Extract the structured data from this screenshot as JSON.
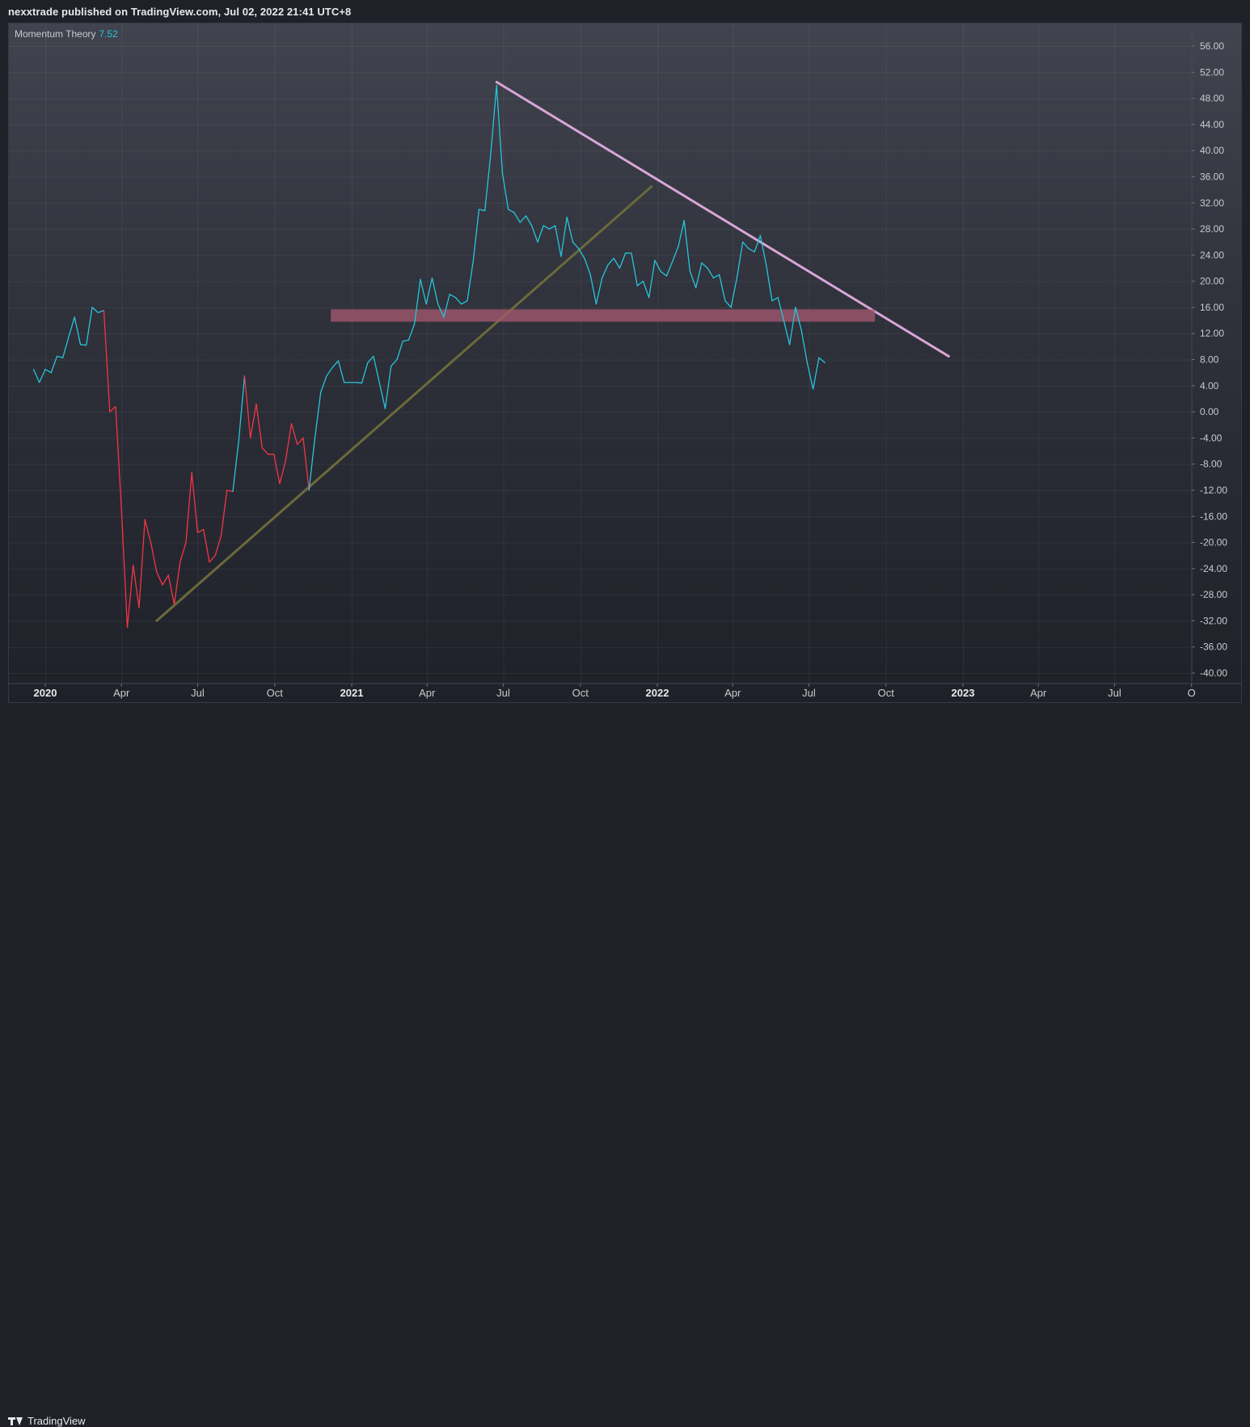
{
  "header": {
    "publish_line": "nexxtrade published on TradingView.com, Jul 02, 2022 21:41 UTC+8"
  },
  "indicator": {
    "name": "Momentum Theory",
    "value": "7.52",
    "value_color": "#26c6da"
  },
  "footer": {
    "brand": "TradingView"
  },
  "colors": {
    "positive_line": "#26c6da",
    "negative_line": "#f23645",
    "trend_support": "#6b6a3a",
    "trend_resistance": "#d7a6d6",
    "zone_fill": "#a85a70"
  },
  "chart_data": {
    "type": "line",
    "y_ticks": [
      "56.00",
      "52.00",
      "48.00",
      "44.00",
      "40.00",
      "36.00",
      "32.00",
      "28.00",
      "24.00",
      "20.00",
      "16.00",
      "12.00",
      "8.00",
      "4.00",
      "0.00",
      "-4.00",
      "-8.00",
      "-12.00",
      "-16.00",
      "-20.00",
      "-24.00",
      "-28.00",
      "-32.00",
      "-36.00",
      "-40.00"
    ],
    "ylim": [
      -40,
      56
    ],
    "x_ticks": [
      {
        "label": "2020",
        "date": "2020-01-01",
        "bold": true
      },
      {
        "label": "Apr",
        "date": "2020-04-01"
      },
      {
        "label": "Jul",
        "date": "2020-07-01"
      },
      {
        "label": "Oct",
        "date": "2020-10-01"
      },
      {
        "label": "2021",
        "date": "2021-01-01",
        "bold": true
      },
      {
        "label": "Apr",
        "date": "2021-04-01"
      },
      {
        "label": "Jul",
        "date": "2021-07-01"
      },
      {
        "label": "Oct",
        "date": "2021-10-01"
      },
      {
        "label": "2022",
        "date": "2022-01-01",
        "bold": true
      },
      {
        "label": "Apr",
        "date": "2022-04-01"
      },
      {
        "label": "Jul",
        "date": "2022-07-01"
      },
      {
        "label": "Oct",
        "date": "2022-10-01"
      },
      {
        "label": "2023",
        "date": "2023-01-01",
        "bold": true
      },
      {
        "label": "Apr",
        "date": "2023-04-01"
      },
      {
        "label": "Jul",
        "date": "2023-07-01"
      },
      {
        "label": "O",
        "date": "2023-10-01"
      }
    ],
    "xlim": [
      "2018-12-18",
      "2023-10-01"
    ],
    "grid": true,
    "series": [
      {
        "values": [
          [
            "2019-12-18",
            6.5
          ],
          [
            "2019-12-25",
            4.5
          ],
          [
            "2020-01-01",
            6.5
          ],
          [
            "2020-01-08",
            6.0
          ],
          [
            "2020-01-15",
            8.5
          ],
          [
            "2020-01-22",
            8.3
          ],
          [
            "2020-01-29",
            11.5
          ],
          [
            "2020-02-05",
            14.5
          ],
          [
            "2020-02-12",
            10.3
          ],
          [
            "2020-02-19",
            10.2
          ],
          [
            "2020-02-26",
            16.0
          ],
          [
            "2020-03-04",
            15.2
          ],
          [
            "2020-03-11",
            15.5
          ],
          [
            "2020-03-18",
            0.0
          ],
          [
            "2020-03-25",
            0.8
          ],
          [
            "2020-04-01",
            -15.0
          ],
          [
            "2020-04-08",
            -33.0
          ],
          [
            "2020-04-15",
            -23.5
          ],
          [
            "2020-04-22",
            -30.0
          ],
          [
            "2020-04-29",
            -16.5
          ],
          [
            "2020-05-06",
            -20.0
          ],
          [
            "2020-05-13",
            -24.5
          ],
          [
            "2020-05-20",
            -26.5
          ],
          [
            "2020-05-27",
            -25.0
          ],
          [
            "2020-06-03",
            -29.5
          ],
          [
            "2020-06-10",
            -23.0
          ],
          [
            "2020-06-17",
            -20.0
          ],
          [
            "2020-06-24",
            -9.3
          ],
          [
            "2020-07-01",
            -18.5
          ],
          [
            "2020-07-08",
            -18.0
          ],
          [
            "2020-07-15",
            -23.0
          ],
          [
            "2020-07-22",
            -22.0
          ],
          [
            "2020-07-29",
            -19.0
          ],
          [
            "2020-08-05",
            -12.0
          ],
          [
            "2020-08-12",
            -12.2
          ],
          [
            "2020-08-19",
            -4.5
          ],
          [
            "2020-08-26",
            5.5
          ],
          [
            "2020-09-02",
            -4.0
          ],
          [
            "2020-09-09",
            1.2
          ],
          [
            "2020-09-16",
            -5.5
          ],
          [
            "2020-09-23",
            -6.5
          ],
          [
            "2020-09-30",
            -6.5
          ],
          [
            "2020-10-07",
            -11.0
          ],
          [
            "2020-10-14",
            -7.5
          ],
          [
            "2020-10-21",
            -1.8
          ],
          [
            "2020-10-28",
            -5.0
          ],
          [
            "2020-11-04",
            -4.0
          ],
          [
            "2020-11-11",
            -12.0
          ],
          [
            "2020-11-18",
            -4.0
          ],
          [
            "2020-11-25",
            3.0
          ],
          [
            "2020-12-02",
            5.5
          ],
          [
            "2020-12-09",
            6.8
          ],
          [
            "2020-12-16",
            7.8
          ],
          [
            "2020-12-23",
            4.5
          ],
          [
            "2020-12-30",
            4.5
          ],
          [
            "2021-01-06",
            4.5
          ],
          [
            "2021-01-13",
            4.4
          ],
          [
            "2021-01-20",
            7.5
          ],
          [
            "2021-01-27",
            8.5
          ],
          [
            "2021-02-03",
            4.5
          ],
          [
            "2021-02-10",
            0.5
          ],
          [
            "2021-02-17",
            7.0
          ],
          [
            "2021-02-24",
            8.0
          ],
          [
            "2021-03-03",
            10.8
          ],
          [
            "2021-03-10",
            11.0
          ],
          [
            "2021-03-17",
            13.5
          ],
          [
            "2021-03-24",
            20.3
          ],
          [
            "2021-03-31",
            16.5
          ],
          [
            "2021-04-07",
            20.5
          ],
          [
            "2021-04-14",
            16.5
          ],
          [
            "2021-04-21",
            14.5
          ],
          [
            "2021-04-28",
            18.0
          ],
          [
            "2021-05-05",
            17.5
          ],
          [
            "2021-05-12",
            16.5
          ],
          [
            "2021-05-19",
            17.0
          ],
          [
            "2021-05-26",
            23.0
          ],
          [
            "2021-06-02",
            31.0
          ],
          [
            "2021-06-09",
            30.8
          ],
          [
            "2021-06-16",
            39.5
          ],
          [
            "2021-06-23",
            50.0
          ],
          [
            "2021-06-30",
            36.5
          ],
          [
            "2021-07-07",
            31.0
          ],
          [
            "2021-07-14",
            30.5
          ],
          [
            "2021-07-21",
            29.0
          ],
          [
            "2021-07-28",
            30.0
          ],
          [
            "2021-08-04",
            28.5
          ],
          [
            "2021-08-11",
            26.0
          ],
          [
            "2021-08-18",
            28.5
          ],
          [
            "2021-08-25",
            28.0
          ],
          [
            "2021-09-01",
            28.5
          ],
          [
            "2021-09-08",
            23.8
          ],
          [
            "2021-09-15",
            29.8
          ],
          [
            "2021-09-22",
            26.0
          ],
          [
            "2021-09-29",
            25.0
          ],
          [
            "2021-10-06",
            23.5
          ],
          [
            "2021-10-13",
            21.0
          ],
          [
            "2021-10-20",
            16.5
          ],
          [
            "2021-10-27",
            20.5
          ],
          [
            "2021-11-03",
            22.5
          ],
          [
            "2021-11-10",
            23.5
          ],
          [
            "2021-11-17",
            22.0
          ],
          [
            "2021-11-24",
            24.3
          ],
          [
            "2021-12-01",
            24.3
          ],
          [
            "2021-12-08",
            19.3
          ],
          [
            "2021-12-15",
            20.0
          ],
          [
            "2021-12-22",
            17.5
          ],
          [
            "2021-12-29",
            23.2
          ],
          [
            "2022-01-05",
            21.5
          ],
          [
            "2022-01-12",
            20.8
          ],
          [
            "2022-01-19",
            23.0
          ],
          [
            "2022-01-26",
            25.3
          ],
          [
            "2022-02-02",
            29.3
          ],
          [
            "2022-02-09",
            21.5
          ],
          [
            "2022-02-16",
            19.0
          ],
          [
            "2022-02-23",
            22.8
          ],
          [
            "2022-03-02",
            22.0
          ],
          [
            "2022-03-09",
            20.5
          ],
          [
            "2022-03-16",
            21.0
          ],
          [
            "2022-03-23",
            17.0
          ],
          [
            "2022-03-30",
            16.0
          ],
          [
            "2022-04-06",
            20.5
          ],
          [
            "2022-04-13",
            26.0
          ],
          [
            "2022-04-20",
            25.0
          ],
          [
            "2022-04-27",
            24.5
          ],
          [
            "2022-05-04",
            27.0
          ],
          [
            "2022-05-11",
            22.5
          ],
          [
            "2022-05-18",
            17.0
          ],
          [
            "2022-05-25",
            17.5
          ],
          [
            "2022-06-01",
            14.0
          ],
          [
            "2022-06-08",
            10.3
          ],
          [
            "2022-06-15",
            16.0
          ],
          [
            "2022-06-22",
            12.5
          ],
          [
            "2022-06-29",
            7.5
          ],
          [
            "2022-07-06",
            3.5
          ],
          [
            "2022-07-13",
            8.3
          ],
          [
            "2022-07-20",
            7.52
          ]
        ]
      }
    ],
    "threshold_up_date": "2020-11-18",
    "threshold_down_date": "2020-03-11",
    "threshold_up2_date": "2020-08-19",
    "threshold_down2_date": "2020-09-02",
    "annotations": [
      {
        "kind": "trendline",
        "from": [
          "2020-05-13",
          -32.0
        ],
        "to": [
          "2021-12-25",
          34.5
        ],
        "color": "#6b6a3a"
      },
      {
        "kind": "trendline",
        "from": [
          "2021-06-23",
          50.5
        ],
        "to": [
          "2022-12-15",
          8.5
        ],
        "color": "#d7a6d6"
      },
      {
        "kind": "zone",
        "from_date": "2020-12-07",
        "to_date": "2022-09-18",
        "y_low": 13.8,
        "y_high": 15.7,
        "color": "#a85a70"
      }
    ]
  }
}
